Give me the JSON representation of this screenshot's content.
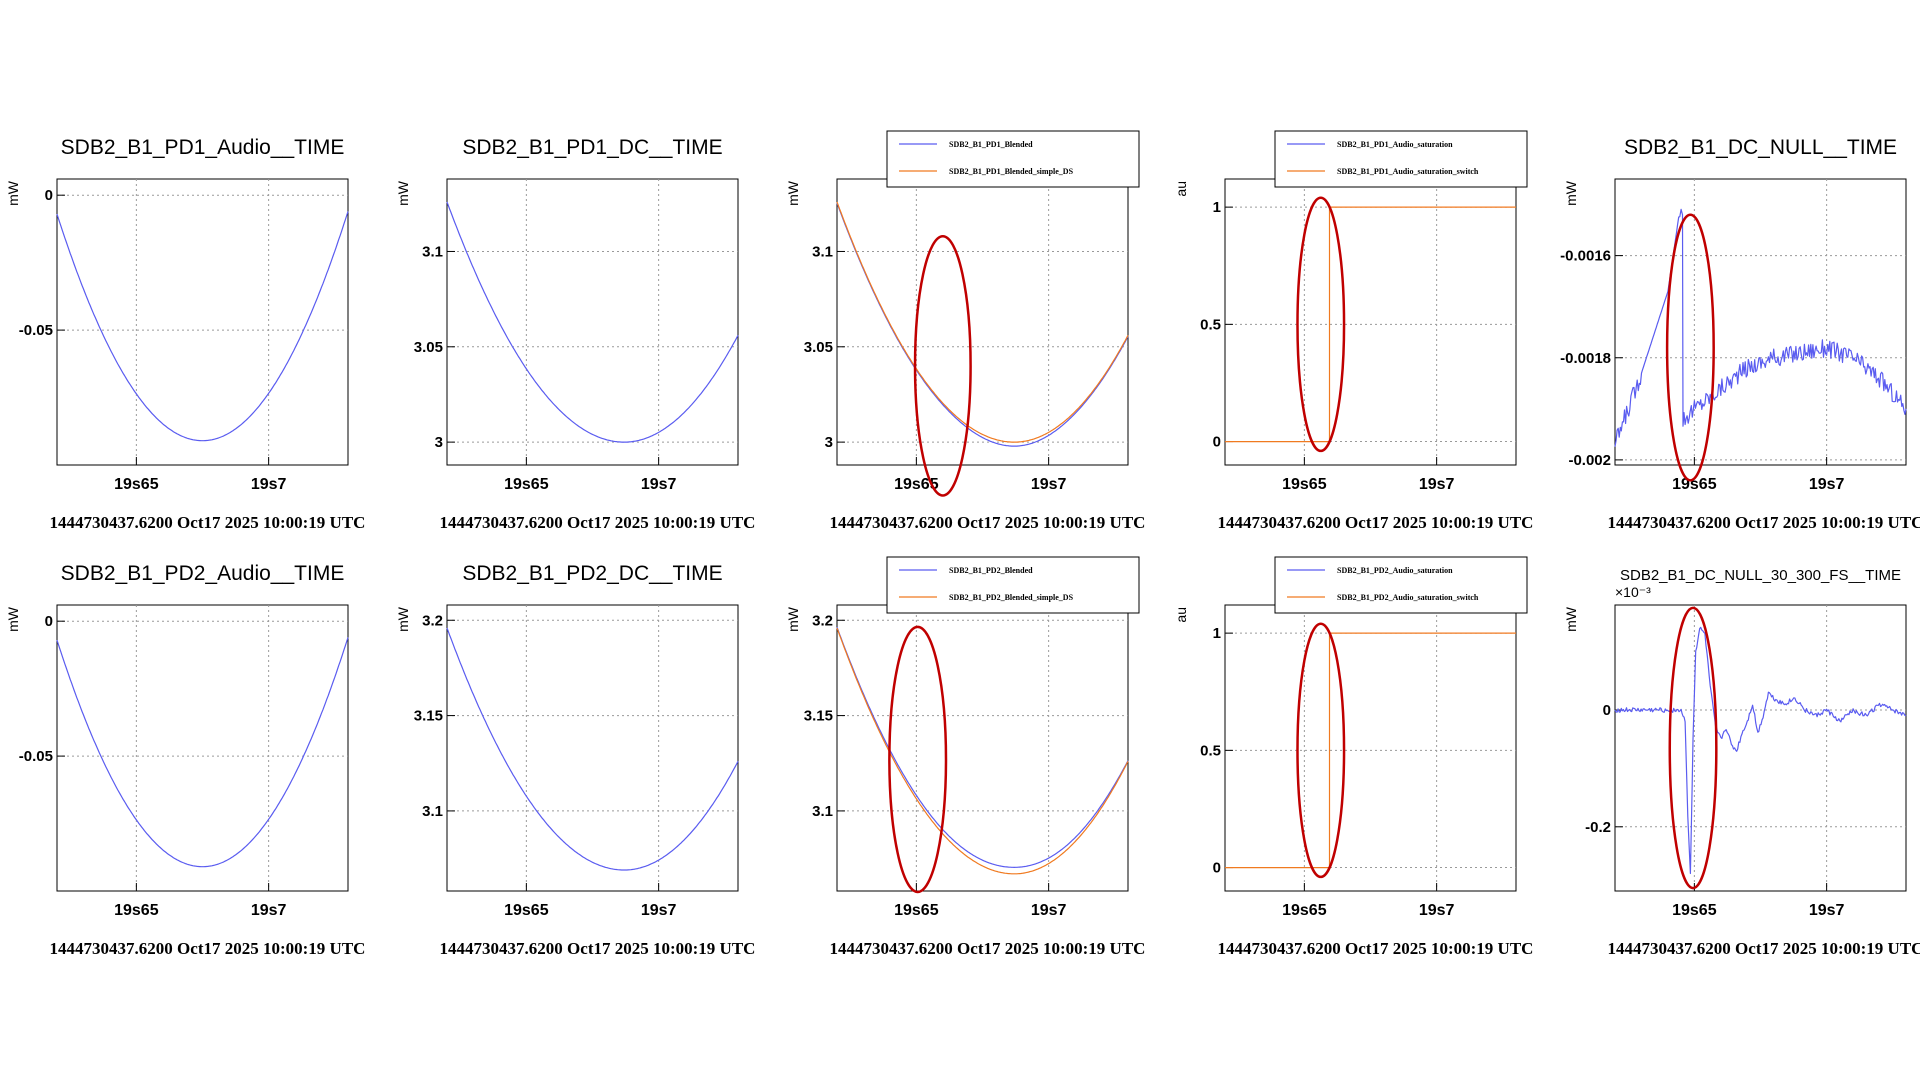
{
  "colors": {
    "blue": "#5a5cf0",
    "orange": "#f07a20",
    "ring": "#c00000"
  },
  "chart_data": [
    {
      "type": "line",
      "title": "SDB2_B1_PD1_Audio__TIME",
      "ylabel": "mW",
      "exponent": "",
      "xlim": [
        19.62,
        19.73
      ],
      "ylim": [
        -0.1,
        0.006
      ],
      "xticks": [
        {
          "v": 19.65,
          "label": "19s65"
        },
        {
          "v": 19.7,
          "label": "19s7"
        }
      ],
      "yticks": [
        {
          "v": 0,
          "label": "0"
        },
        {
          "v": -0.05,
          "label": "-0.05"
        }
      ],
      "footer": "1444730437.6200 Oct17 2025 10:00:19 UTC",
      "legend": [],
      "ellipses": [],
      "series": [
        {
          "name": "SDB2_B1_PD1_Audio__TIME",
          "color": "blue",
          "shape": "parabola",
          "x": [
            19.62,
            19.675,
            19.73
          ],
          "y": [
            -0.007,
            -0.091,
            -0.006
          ]
        }
      ]
    },
    {
      "type": "line",
      "title": "SDB2_B1_PD1_DC__TIME",
      "ylabel": "mW",
      "exponent": "",
      "xlim": [
        19.62,
        19.73
      ],
      "ylim": [
        2.988,
        3.138
      ],
      "xticks": [
        {
          "v": 19.65,
          "label": "19s65"
        },
        {
          "v": 19.7,
          "label": "19s7"
        }
      ],
      "yticks": [
        {
          "v": 3.1,
          "label": "3.1"
        },
        {
          "v": 3.05,
          "label": "3.05"
        },
        {
          "v": 3.0,
          "label": "3"
        }
      ],
      "footer": "1444730437.6200 Oct17 2025 10:00:19 UTC",
      "legend": [],
      "ellipses": [],
      "series": [
        {
          "name": "SDB2_B1_PD1_DC__TIME",
          "color": "blue",
          "shape": "parabola",
          "x": [
            19.62,
            19.687,
            19.73
          ],
          "y": [
            3.126,
            3.0,
            3.056
          ]
        }
      ]
    },
    {
      "type": "line",
      "title": "",
      "ylabel": "mW",
      "exponent": "",
      "xlim": [
        19.62,
        19.73
      ],
      "ylim": [
        2.988,
        3.138
      ],
      "xticks": [
        {
          "v": 19.65,
          "label": "19s65"
        },
        {
          "v": 19.7,
          "label": "19s7"
        }
      ],
      "yticks": [
        {
          "v": 3.1,
          "label": "3.1"
        },
        {
          "v": 3.05,
          "label": "3.05"
        },
        {
          "v": 3.0,
          "label": "3"
        }
      ],
      "footer": "1444730437.6200 Oct17 2025 10:00:19 UTC",
      "legend": [
        {
          "label": "SDB2_B1_PD1_Blended",
          "color": "blue"
        },
        {
          "label": "SDB2_B1_PD1_Blended_simple_DS",
          "color": "orange"
        }
      ],
      "ellipses": [
        {
          "cx": 19.66,
          "cy": 3.04,
          "rx": 0.0105,
          "ry": 0.068
        }
      ],
      "series": [
        {
          "name": "SDB2_B1_PD1_Blended",
          "color": "blue",
          "shape": "parabola",
          "x": [
            19.62,
            19.687,
            19.73
          ],
          "y": [
            3.126,
            3.0,
            3.056
          ],
          "offset": -0.0015
        },
        {
          "name": "SDB2_B1_PD1_Blended_simple_DS",
          "color": "orange",
          "shape": "parabola",
          "x": [
            19.62,
            19.687,
            19.73
          ],
          "y": [
            3.126,
            3.0,
            3.056
          ],
          "offset": 0
        }
      ]
    },
    {
      "type": "line",
      "title": "",
      "ylabel": "au",
      "exponent": "",
      "xlim": [
        19.62,
        19.73
      ],
      "ylim": [
        -0.1,
        1.12
      ],
      "xticks": [
        {
          "v": 19.65,
          "label": "19s65"
        },
        {
          "v": 19.7,
          "label": "19s7"
        }
      ],
      "yticks": [
        {
          "v": 1,
          "label": "1"
        },
        {
          "v": 0.5,
          "label": "0.5"
        },
        {
          "v": 0,
          "label": "0"
        }
      ],
      "footer": "1444730437.6200 Oct17 2025 10:00:19 UTC",
      "legend": [
        {
          "label": "SDB2_B1_PD1_Audio_saturation",
          "color": "blue"
        },
        {
          "label": "SDB2_B1_PD1_Audio_saturation_switch",
          "color": "orange"
        }
      ],
      "ellipses": [
        {
          "cx": 19.6562,
          "cy": 0.5,
          "rx": 0.0088,
          "ry": 0.54
        }
      ],
      "series": [
        {
          "name": "SDB2_B1_PD1_Audio_saturation_switch",
          "color": "orange",
          "shape": "step",
          "x": [
            19.62,
            19.6595,
            19.6595,
            19.73
          ],
          "y": [
            0,
            0,
            1,
            1
          ]
        }
      ]
    },
    {
      "type": "line",
      "title": "SDB2_B1_DC_NULL__TIME",
      "ylabel": "mW",
      "exponent": "",
      "xlim": [
        19.62,
        19.73
      ],
      "ylim": [
        -0.00201,
        -0.00145
      ],
      "xticks": [
        {
          "v": 19.65,
          "label": "19s65"
        },
        {
          "v": 19.7,
          "label": "19s7"
        }
      ],
      "yticks": [
        {
          "v": -0.0016,
          "label": "-0.0016"
        },
        {
          "v": -0.0018,
          "label": "-0.0018"
        },
        {
          "v": -0.002,
          "label": "-0.002"
        }
      ],
      "footer": "1444730437.6200 Oct17 2025 10:00:19 UTC",
      "legend": [],
      "ellipses": [
        {
          "cx": 19.6485,
          "cy": -0.00178,
          "rx": 0.0088,
          "ry": 0.00026
        }
      ],
      "series": [
        {
          "name": "SDB2_B1_DC_NULL__TIME",
          "color": "blue",
          "shape": "polyline",
          "noise": 1.8e-05,
          "x": [
            19.62,
            19.63,
            19.64,
            19.6445,
            19.6455,
            19.6457,
            19.65,
            19.66,
            19.67,
            19.68,
            19.69,
            19.7,
            19.71,
            19.72,
            19.73
          ],
          "y": [
            -0.00197,
            -0.00183,
            -0.00167,
            -0.00151,
            -0.00152,
            -0.00192,
            -0.0019,
            -0.00186,
            -0.00182,
            -0.0018,
            -0.00179,
            -0.00178,
            -0.0018,
            -0.00184,
            -0.0019
          ]
        }
      ]
    },
    {
      "type": "line",
      "title": "SDB2_B1_PD2_Audio__TIME",
      "ylabel": "mW",
      "exponent": "",
      "xlim": [
        19.62,
        19.73
      ],
      "ylim": [
        -0.1,
        0.006
      ],
      "xticks": [
        {
          "v": 19.65,
          "label": "19s65"
        },
        {
          "v": 19.7,
          "label": "19s7"
        }
      ],
      "yticks": [
        {
          "v": 0,
          "label": "0"
        },
        {
          "v": -0.05,
          "label": "-0.05"
        }
      ],
      "footer": "1444730437.6200 Oct17 2025 10:00:19 UTC",
      "legend": [],
      "ellipses": [],
      "series": [
        {
          "name": "SDB2_B1_PD2_Audio__TIME",
          "color": "blue",
          "shape": "parabola",
          "x": [
            19.62,
            19.675,
            19.73
          ],
          "y": [
            -0.007,
            -0.091,
            -0.006
          ]
        }
      ]
    },
    {
      "type": "line",
      "title": "SDB2_B1_PD2_DC__TIME",
      "ylabel": "mW",
      "exponent": "",
      "xlim": [
        19.62,
        19.73
      ],
      "ylim": [
        3.058,
        3.208
      ],
      "xticks": [
        {
          "v": 19.65,
          "label": "19s65"
        },
        {
          "v": 19.7,
          "label": "19s7"
        }
      ],
      "yticks": [
        {
          "v": 3.2,
          "label": "3.2"
        },
        {
          "v": 3.15,
          "label": "3.15"
        },
        {
          "v": 3.1,
          "label": "3.1"
        }
      ],
      "footer": "1444730437.6200 Oct17 2025 10:00:19 UTC",
      "legend": [],
      "ellipses": [],
      "series": [
        {
          "name": "SDB2_B1_PD2_DC__TIME",
          "color": "blue",
          "shape": "parabola",
          "x": [
            19.62,
            19.687,
            19.73
          ],
          "y": [
            3.196,
            3.069,
            3.126
          ]
        }
      ]
    },
    {
      "type": "line",
      "title": "",
      "ylabel": "mW",
      "exponent": "",
      "xlim": [
        19.62,
        19.73
      ],
      "ylim": [
        3.058,
        3.208
      ],
      "xticks": [
        {
          "v": 19.65,
          "label": "19s65"
        },
        {
          "v": 19.7,
          "label": "19s7"
        }
      ],
      "yticks": [
        {
          "v": 3.2,
          "label": "3.2"
        },
        {
          "v": 3.15,
          "label": "3.15"
        },
        {
          "v": 3.1,
          "label": "3.1"
        }
      ],
      "footer": "1444730437.6200 Oct17 2025 10:00:19 UTC",
      "legend": [
        {
          "label": "SDB2_B1_PD2_Blended",
          "color": "blue"
        },
        {
          "label": "SDB2_B1_PD2_Blended_simple_DS",
          "color": "orange"
        }
      ],
      "ellipses": [
        {
          "cx": 19.6505,
          "cy": 3.127,
          "rx": 0.0107,
          "ry": 0.0695
        }
      ],
      "series": [
        {
          "name": "SDB2_B1_PD2_Blended",
          "color": "blue",
          "shape": "parabola",
          "x": [
            19.62,
            19.687,
            19.73
          ],
          "y": [
            3.196,
            3.069,
            3.126
          ],
          "offset": 0.001
        },
        {
          "name": "SDB2_B1_PD2_Blended_simple_DS",
          "color": "orange",
          "shape": "parabola",
          "x": [
            19.62,
            19.687,
            19.73
          ],
          "y": [
            3.196,
            3.067,
            3.126
          ],
          "offset": 0
        }
      ]
    },
    {
      "type": "line",
      "title": "",
      "ylabel": "au",
      "exponent": "",
      "xlim": [
        19.62,
        19.73
      ],
      "ylim": [
        -0.1,
        1.12
      ],
      "xticks": [
        {
          "v": 19.65,
          "label": "19s65"
        },
        {
          "v": 19.7,
          "label": "19s7"
        }
      ],
      "yticks": [
        {
          "v": 1,
          "label": "1"
        },
        {
          "v": 0.5,
          "label": "0.5"
        },
        {
          "v": 0,
          "label": "0"
        }
      ],
      "footer": "1444730437.6200 Oct17 2025 10:00:19 UTC",
      "legend": [
        {
          "label": "SDB2_B1_PD2_Audio_saturation",
          "color": "blue"
        },
        {
          "label": "SDB2_B1_PD2_Audio_saturation_switch",
          "color": "orange"
        }
      ],
      "ellipses": [
        {
          "cx": 19.6562,
          "cy": 0.5,
          "rx": 0.0088,
          "ry": 0.54
        }
      ],
      "series": [
        {
          "name": "SDB2_B1_PD2_Audio_saturation_switch",
          "color": "orange",
          "shape": "step",
          "x": [
            19.62,
            19.6595,
            19.6595,
            19.73
          ],
          "y": [
            0,
            0,
            1,
            1
          ]
        }
      ]
    },
    {
      "type": "line",
      "title": "SDB2_B1_DC_NULL_30_300_FS__TIME",
      "ylabel": "mW",
      "exponent": "×10⁻³",
      "xlim": [
        19.62,
        19.73
      ],
      "ylim": [
        -0.31,
        0.18
      ],
      "xticks": [
        {
          "v": 19.65,
          "label": "19s65"
        },
        {
          "v": 19.7,
          "label": "19s7"
        }
      ],
      "yticks": [
        {
          "v": 0,
          "label": "0"
        },
        {
          "v": -0.2,
          "label": "-0.2"
        }
      ],
      "footer": "1444730437.6200 Oct17 2025 10:00:19 UTC",
      "legend": [],
      "ellipses": [
        {
          "cx": 19.6495,
          "cy": -0.065,
          "rx": 0.0088,
          "ry": 0.24
        }
      ],
      "series": [
        {
          "name": "SDB2_B1_DC_NULL_30_300_FS__TIME",
          "color": "blue",
          "shape": "polyline",
          "noise": 0.004,
          "x": [
            19.62,
            19.635,
            19.645,
            19.6465,
            19.6475,
            19.6485,
            19.6495,
            19.6505,
            19.652,
            19.654,
            19.656,
            19.658,
            19.66,
            19.662,
            19.664,
            19.666,
            19.668,
            19.67,
            19.672,
            19.674,
            19.676,
            19.678,
            19.68,
            19.684,
            19.688,
            19.692,
            19.696,
            19.7,
            19.705,
            19.71,
            19.715,
            19.72,
            19.725,
            19.73
          ],
          "y": [
            0.0,
            0.0,
            0.0,
            -0.02,
            -0.18,
            -0.28,
            -0.05,
            0.1,
            0.14,
            0.13,
            0.04,
            -0.03,
            -0.05,
            -0.03,
            -0.06,
            -0.07,
            -0.04,
            -0.02,
            0.01,
            -0.04,
            -0.01,
            0.03,
            0.02,
            0.01,
            0.02,
            0.0,
            -0.01,
            0.0,
            -0.02,
            0.0,
            -0.01,
            0.01,
            0.0,
            -0.01
          ]
        }
      ]
    }
  ]
}
